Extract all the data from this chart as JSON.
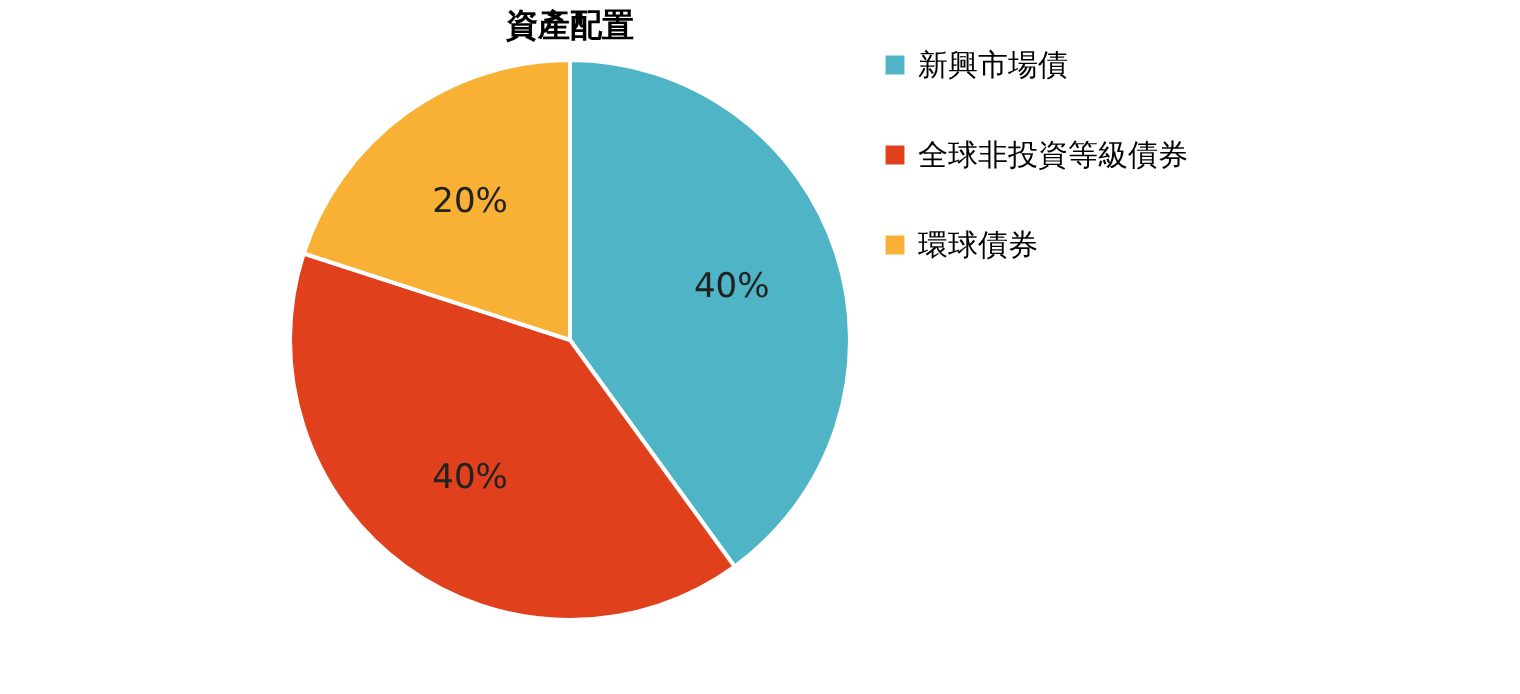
{
  "chart_data": {
    "type": "pie",
    "title": "資產配置",
    "categories": [
      "新興市場債",
      "全球非投資等級債券",
      "環球債券"
    ],
    "values": [
      40,
      40,
      20
    ],
    "colors": [
      "#4fb5c6",
      "#e0401c",
      "#f8b135"
    ],
    "value_labels": [
      "40%",
      "40%",
      "20%"
    ],
    "legend": "right"
  }
}
